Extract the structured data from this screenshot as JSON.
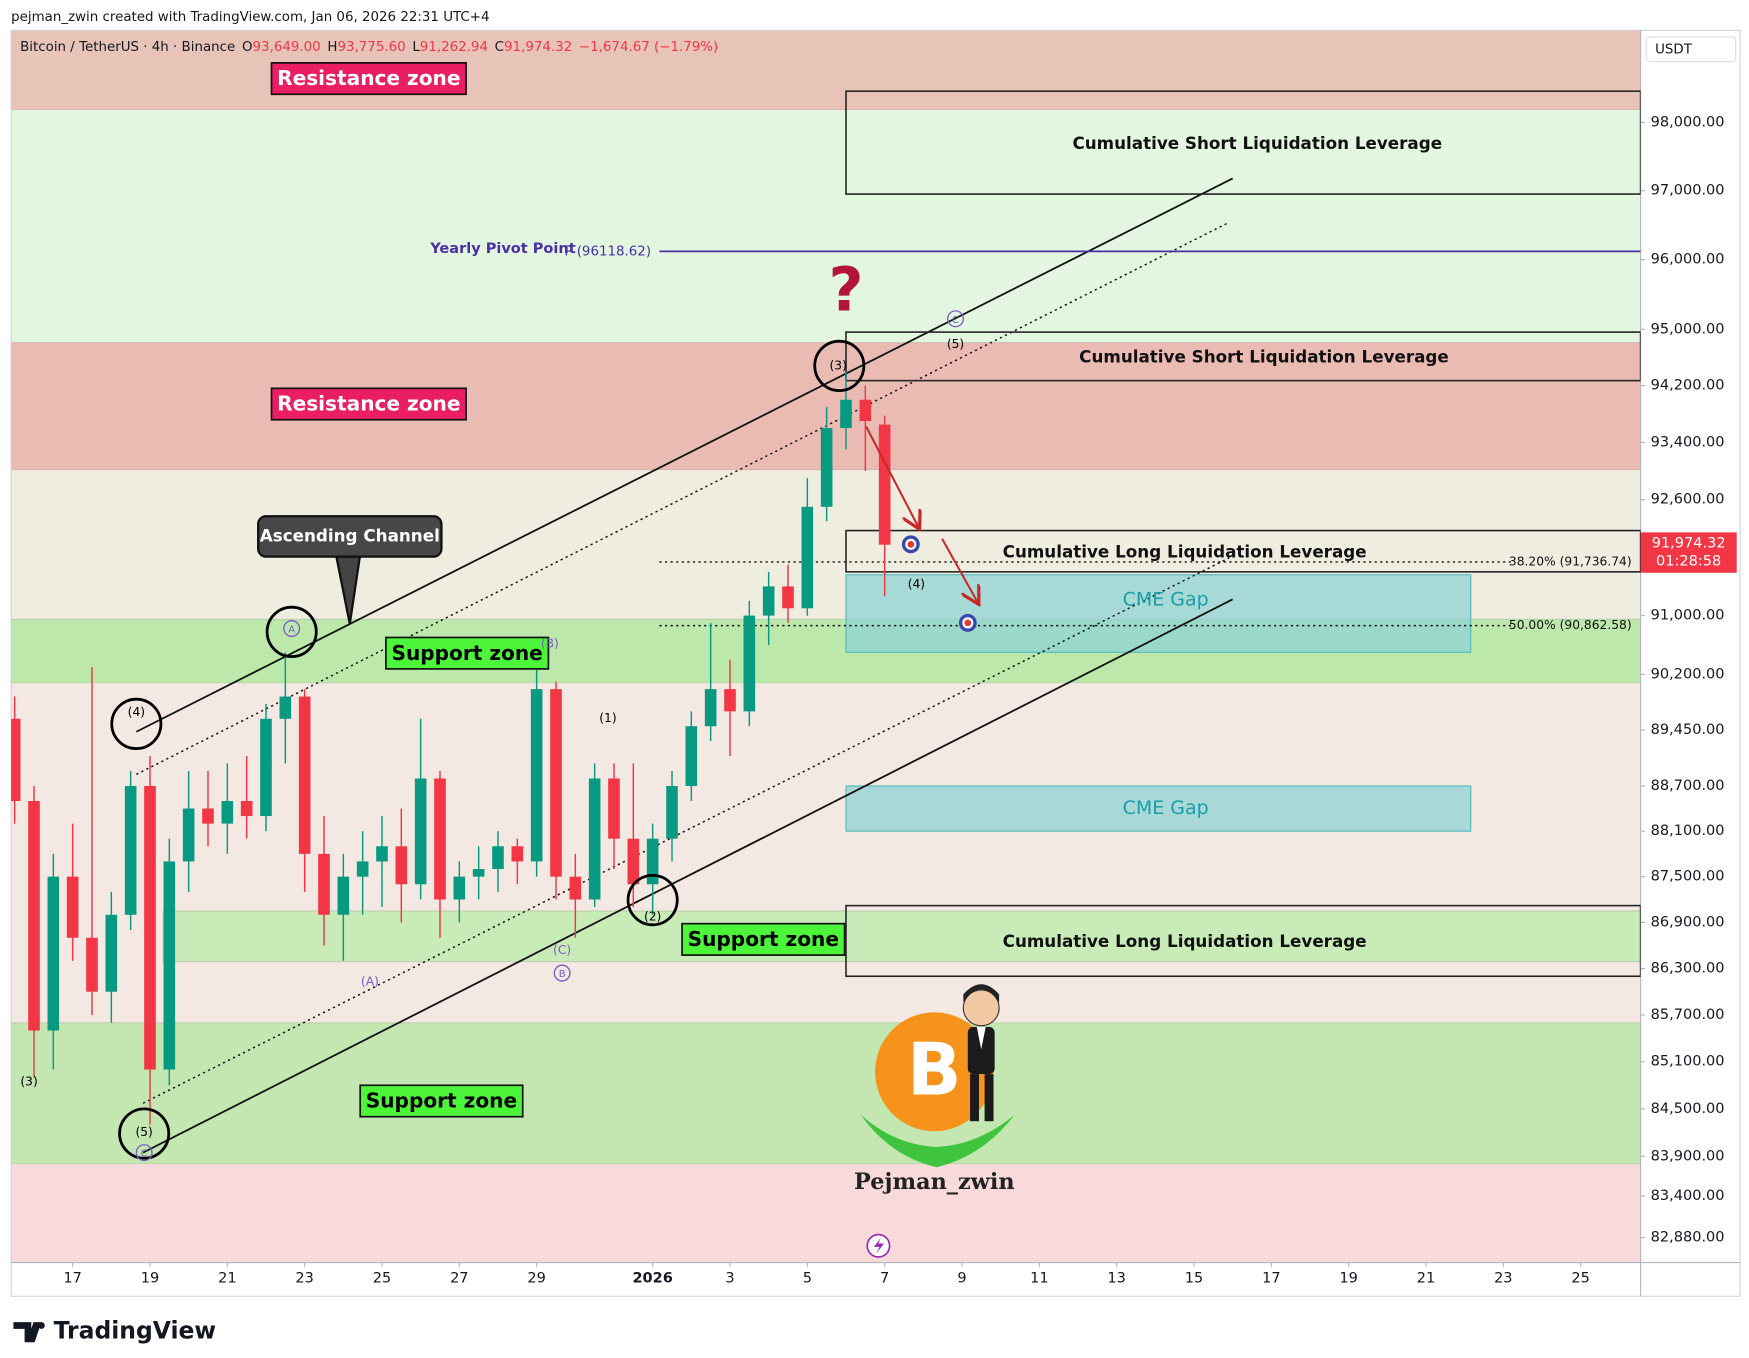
{
  "header": {
    "attribution": "pejman_zwin created with TradingView.com, Jan 06, 2026 22:31 UTC+4"
  },
  "footer": {
    "brand": "TradingView"
  },
  "chart_data": {
    "type": "candlestick",
    "legend": {
      "symbol": "Bitcoin / TetherUS · 4h · Binance",
      "ohlc": [
        {
          "key": "O",
          "value": "93,649.00"
        },
        {
          "key": "H",
          "value": "93,775.60"
        },
        {
          "key": "L",
          "value": "91,262.94"
        },
        {
          "key": "C",
          "value": "91,974.32"
        }
      ],
      "change": "−1,674.67 (−1.79%)"
    },
    "currency": "USDT",
    "log_scale": true,
    "up_color": "#089981",
    "down_color": "#f23645",
    "ylim": [
      82570,
      99365
    ],
    "yticks": [
      {
        "value": 98000,
        "label": "98,000.00"
      },
      {
        "value": 97000,
        "label": "97,000.00"
      },
      {
        "value": 96000,
        "label": "96,000.00"
      },
      {
        "value": 95000,
        "label": "95,000.00"
      },
      {
        "value": 94200,
        "label": "94,200.00"
      },
      {
        "value": 93400,
        "label": "93,400.00"
      },
      {
        "value": 92600,
        "label": "92,600.00"
      },
      {
        "value": 91000,
        "label": "91,000.00"
      },
      {
        "value": 90200,
        "label": "90,200.00"
      },
      {
        "value": 89450,
        "label": "89,450.00"
      },
      {
        "value": 88700,
        "label": "88,700.00"
      },
      {
        "value": 88100,
        "label": "88,100.00"
      },
      {
        "value": 87500,
        "label": "87,500.00"
      },
      {
        "value": 86900,
        "label": "86,900.00"
      },
      {
        "value": 86300,
        "label": "86,300.00"
      },
      {
        "value": 85700,
        "label": "85,700.00"
      },
      {
        "value": 85100,
        "label": "85,100.00"
      },
      {
        "value": 84500,
        "label": "84,500.00"
      },
      {
        "value": 83900,
        "label": "83,900.00"
      },
      {
        "value": 83400,
        "label": "83,400.00"
      },
      {
        "value": 82880,
        "label": "82,880.00"
      }
    ],
    "xlim": [
      -1.59,
      40.55
    ],
    "xticks": [
      {
        "value": 0,
        "label": "17"
      },
      {
        "value": 2,
        "label": "19"
      },
      {
        "value": 4,
        "label": "21"
      },
      {
        "value": 6,
        "label": "23"
      },
      {
        "value": 8,
        "label": "25"
      },
      {
        "value": 10,
        "label": "27"
      },
      {
        "value": 12,
        "label": "29"
      },
      {
        "value": 15,
        "label": "2026"
      },
      {
        "value": 17,
        "label": "3"
      },
      {
        "value": 19,
        "label": "5"
      },
      {
        "value": 21,
        "label": "7"
      },
      {
        "value": 23,
        "label": "9"
      },
      {
        "value": 25,
        "label": "11"
      },
      {
        "value": 27,
        "label": "13"
      },
      {
        "value": 29,
        "label": "15"
      },
      {
        "value": 31,
        "label": "17"
      },
      {
        "value": 33,
        "label": "19"
      },
      {
        "value": 35,
        "label": "21"
      },
      {
        "value": 37,
        "label": "23"
      },
      {
        "value": 39,
        "label": "25"
      }
    ],
    "candles": {
      "x": [
        -1.5,
        -1,
        -0.5,
        0,
        0.5,
        1,
        1.5,
        2,
        2.5,
        3,
        3.5,
        4,
        4.5,
        5,
        5.5,
        6,
        6.5,
        7,
        7.5,
        8,
        8.5,
        9,
        9.5,
        10,
        10.5,
        11,
        11.5,
        12,
        12.5,
        13,
        13.5,
        14,
        14.5,
        15,
        15.5,
        16,
        16.5,
        17,
        17.5,
        18,
        18.5,
        19,
        19.5,
        20,
        20.5,
        21
      ],
      "open": [
        89600,
        88500,
        85500,
        87500,
        86700,
        86000,
        87000,
        88700,
        85000,
        87700,
        88400,
        88200,
        88500,
        88300,
        89600,
        89900,
        87800,
        87000,
        87500,
        87700,
        87900,
        87400,
        88800,
        87200,
        87500,
        87600,
        87900,
        87700,
        90000,
        87500,
        87200,
        88800,
        88000,
        87400,
        88000,
        88700,
        89500,
        90000,
        89700,
        91000,
        91400,
        91100,
        92500,
        93600,
        94000,
        93649
      ],
      "high": [
        89900,
        88700,
        87800,
        88200,
        90300,
        87300,
        88900,
        89100,
        88000,
        88900,
        88900,
        89000,
        89100,
        89800,
        90500,
        90000,
        88300,
        87800,
        88100,
        88300,
        88400,
        89600,
        88900,
        87700,
        87900,
        88100,
        88000,
        90400,
        90100,
        87800,
        89000,
        89000,
        89000,
        88200,
        88900,
        89700,
        90900,
        90400,
        91200,
        91600,
        91700,
        92900,
        93900,
        94400,
        94200,
        93775.6
      ],
      "low": [
        88200,
        84900,
        85000,
        86400,
        85700,
        85600,
        86800,
        84300,
        84800,
        87300,
        87900,
        87800,
        88000,
        88100,
        89000,
        87300,
        86600,
        86400,
        87000,
        87100,
        86900,
        87200,
        86700,
        86900,
        87200,
        87300,
        87400,
        87500,
        87200,
        86700,
        87100,
        87600,
        87100,
        87000,
        87700,
        88500,
        89300,
        89100,
        89500,
        90600,
        90900,
        91000,
        92300,
        93300,
        93000,
        91262.94
      ],
      "close": [
        88500,
        85500,
        87500,
        86700,
        86000,
        87000,
        88700,
        85000,
        87700,
        88400,
        88200,
        88500,
        88300,
        89600,
        89900,
        87800,
        87000,
        87500,
        87700,
        87900,
        87400,
        88800,
        87200,
        87500,
        87600,
        87900,
        87700,
        90000,
        87500,
        87200,
        88800,
        88000,
        87400,
        88000,
        88700,
        89500,
        90000,
        89700,
        91000,
        91400,
        91100,
        92500,
        93600,
        94000,
        93700,
        91974.32
      ]
    },
    "last_price": {
      "value": 91974.32,
      "label": "91,974.32"
    },
    "countdown": "01:28:58",
    "zones": [
      {
        "label": "Resistance zone",
        "label_bg": "#e91e63",
        "top": 99500,
        "bottom": 98180,
        "color": "#e8c4b8"
      },
      {
        "top": 98180,
        "bottom": 94810,
        "color": "#e3f7e0"
      },
      {
        "label": "Resistance zone",
        "label_bg": "#e91e63",
        "top": 94810,
        "bottom": 93010,
        "color": "#eabbb3"
      },
      {
        "top": 93010,
        "bottom": 90950,
        "color": "#efece0"
      },
      {
        "label": "Support zone",
        "label_bg": "#4cf53a",
        "top": 90950,
        "bottom": 90080,
        "color": "#bce9ab"
      },
      {
        "top": 90080,
        "bottom": 85600,
        "color": "#f3e8e2"
      },
      {
        "label": "Support zone",
        "label_bg": "#4cf53a",
        "top": 87050,
        "bottom": 86390,
        "color": "#c8ebb8"
      },
      {
        "label": "Support zone",
        "label_bg": "#4cf53a",
        "top": 85600,
        "bottom": 83800,
        "color": "#c4e7b2"
      },
      {
        "top": 83800,
        "bottom": 82000,
        "color": "#f8dadb"
      }
    ],
    "liquidation_boxes": [
      {
        "label": "Cumulative Short Liquidation Leverage",
        "top": 98460,
        "bottom": 96950
      },
      {
        "label": "Cumulative Short Liquidation Leverage",
        "top": 94960,
        "bottom": 94270
      },
      {
        "label": "Cumulative Long Liquidation Leverage",
        "top": 92170,
        "bottom": 91600
      },
      {
        "label": "Cumulative Long Liquidation Leverage",
        "top": 87120,
        "bottom": 86200
      }
    ],
    "cme_gaps": [
      {
        "label": "CME Gap",
        "top": 91560,
        "bottom": 90500
      },
      {
        "label": "CME Gap",
        "top": 88700,
        "bottom": 88100
      }
    ],
    "fib_levels": [
      {
        "value": 91736.74,
        "label": "38.20% (91,736.74)"
      },
      {
        "value": 90862.58,
        "label": "50.00% (90,862.58)"
      }
    ],
    "pivot": {
      "name": "Yearly Pivot Point",
      "label": "P (96118.62)",
      "value": 96118.62,
      "color": "#4a2fa8"
    },
    "wave_labels": [
      "(4)",
      "A",
      "(5)",
      "C",
      "(3)",
      "(A)",
      "(B)",
      "(C)",
      "B",
      "(1)",
      "(2)",
      "(3)",
      "C",
      "(5)",
      "(4)"
    ],
    "annotations": {
      "channel": "Ascending Channel",
      "question": "?",
      "watermark": "Pejman_zwin",
      "logo_letter": "B"
    }
  }
}
